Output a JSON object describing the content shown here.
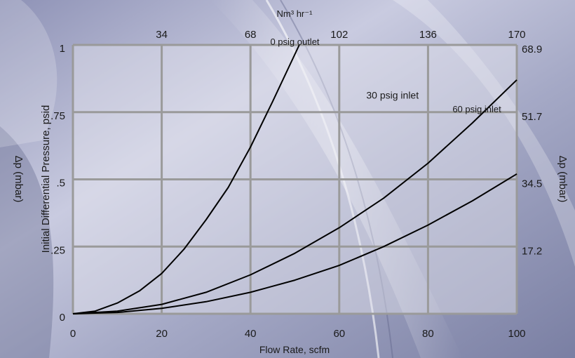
{
  "colors": {
    "background_light": "#e4e4ee",
    "background_mid": "#a9acc8",
    "background_dark": "#6d7196",
    "grid": "#9a9a9a",
    "plot_area": "#d7d8e6",
    "curve": "#000000"
  },
  "chart_data": {
    "type": "line",
    "xlabel": "Flow Rate, scfm",
    "ylabel": "Initial Differential Pressure, psid",
    "top_xlabel": "Nm³ hr⁻¹",
    "right_ylabel": "Δp (mbar)",
    "xlim": [
      0,
      100
    ],
    "ylim": [
      0,
      1
    ],
    "x_ticks": [
      "0",
      "20",
      "40",
      "60",
      "80",
      "100"
    ],
    "y_ticks": [
      "0",
      ".25",
      ".5",
      ".75",
      "1"
    ],
    "top_ticks": [
      "34",
      "68",
      "102",
      "136",
      "170"
    ],
    "right_ticks": [
      "17.2",
      "34.5",
      "51.7",
      "68.9"
    ],
    "grid": true,
    "series": [
      {
        "name": "0 psig outlet",
        "x": [
          0,
          5,
          10,
          15,
          20,
          25,
          30,
          35,
          40,
          45,
          51
        ],
        "y": [
          0,
          0.01,
          0.04,
          0.085,
          0.15,
          0.24,
          0.35,
          0.47,
          0.62,
          0.79,
          1.0
        ]
      },
      {
        "name": "30 psig inlet",
        "x": [
          0,
          10,
          20,
          30,
          40,
          50,
          60,
          70,
          80,
          90,
          100
        ],
        "y": [
          0,
          0.01,
          0.035,
          0.08,
          0.145,
          0.225,
          0.32,
          0.43,
          0.56,
          0.71,
          0.87
        ]
      },
      {
        "name": "60 psig inlet",
        "x": [
          0,
          10,
          20,
          30,
          40,
          50,
          60,
          70,
          80,
          90,
          100
        ],
        "y": [
          0,
          0.005,
          0.02,
          0.045,
          0.08,
          0.125,
          0.18,
          0.25,
          0.33,
          0.42,
          0.52
        ]
      }
    ]
  }
}
